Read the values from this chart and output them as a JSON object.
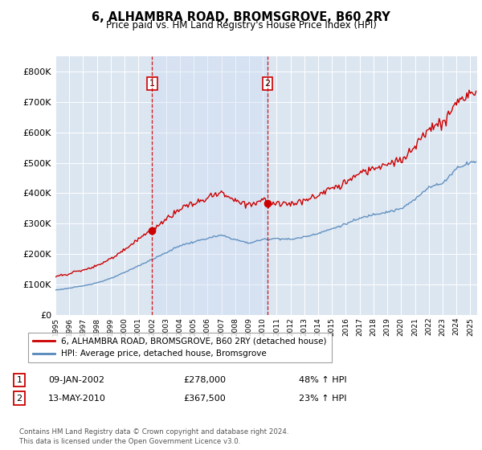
{
  "title": "6, ALHAMBRA ROAD, BROMSGROVE, B60 2RY",
  "subtitle": "Price paid vs. HM Land Registry's House Price Index (HPI)",
  "legend_line1": "6, ALHAMBRA ROAD, BROMSGROVE, B60 2RY (detached house)",
  "legend_line2": "HPI: Average price, detached house, Bromsgrove",
  "transaction1_date": "09-JAN-2002",
  "transaction1_price": 278000,
  "transaction1_hpi": "48% ↑ HPI",
  "transaction2_date": "13-MAY-2010",
  "transaction2_price": 367500,
  "transaction2_hpi": "23% ↑ HPI",
  "note": "Contains HM Land Registry data © Crown copyright and database right 2024.\nThis data is licensed under the Open Government Licence v3.0.",
  "hpi_color": "#5588bb",
  "price_color": "#cc0000",
  "shade_color": "#ddeeff",
  "background_color": "#dce6f1",
  "ylim": [
    0,
    850000
  ],
  "yticks": [
    0,
    100000,
    200000,
    300000,
    400000,
    500000,
    600000,
    700000,
    800000
  ]
}
